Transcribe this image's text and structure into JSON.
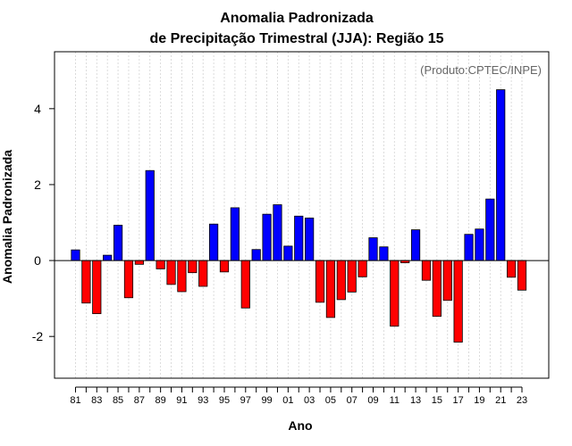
{
  "chart_data": {
    "type": "bar",
    "title": [
      "Anomalia Padronizada",
      "de Precipitação Trimestral (JJA): Região 15"
    ],
    "xlabel": "Ano",
    "ylabel": "Anomalia Padronizada",
    "credit": "(Produto:CPTEC/INPE)",
    "ylim": [
      -3.1,
      5.5
    ],
    "yticks": [
      {
        "value": -2,
        "label": "-2"
      },
      {
        "value": 0,
        "label": "0"
      },
      {
        "value": 2,
        "label": "2"
      },
      {
        "value": 4,
        "label": "4"
      }
    ],
    "years": [
      1981,
      1982,
      1983,
      1984,
      1985,
      1986,
      1987,
      1988,
      1989,
      1990,
      1991,
      1992,
      1993,
      1994,
      1995,
      1996,
      1997,
      1998,
      1999,
      2000,
      2001,
      2002,
      2003,
      2004,
      2005,
      2006,
      2007,
      2008,
      2009,
      2010,
      2011,
      2012,
      2013,
      2014,
      2015,
      2016,
      2017,
      2018,
      2019,
      2020,
      2021,
      2022,
      2023
    ],
    "values": [
      0.28,
      -1.12,
      -1.4,
      0.14,
      0.93,
      -0.98,
      -0.1,
      2.37,
      -0.22,
      -0.63,
      -0.82,
      -0.32,
      -0.68,
      0.96,
      -0.3,
      1.39,
      -1.25,
      0.29,
      1.22,
      1.47,
      0.38,
      1.17,
      1.12,
      -1.1,
      -1.5,
      -1.03,
      -0.83,
      -0.43,
      0.6,
      0.36,
      -1.73,
      -0.06,
      0.81,
      -0.52,
      -1.47,
      -1.05,
      -2.15,
      0.69,
      0.83,
      1.62,
      4.5,
      -0.44,
      -0.78
    ],
    "xticks": [
      {
        "index": 0,
        "label": "81"
      },
      {
        "index": 2,
        "label": "83"
      },
      {
        "index": 4,
        "label": "85"
      },
      {
        "index": 6,
        "label": "87"
      },
      {
        "index": 8,
        "label": "89"
      },
      {
        "index": 10,
        "label": "91"
      },
      {
        "index": 12,
        "label": "93"
      },
      {
        "index": 14,
        "label": "95"
      },
      {
        "index": 16,
        "label": "97"
      },
      {
        "index": 18,
        "label": "99"
      },
      {
        "index": 20,
        "label": "01"
      },
      {
        "index": 22,
        "label": "03"
      },
      {
        "index": 24,
        "label": "05"
      },
      {
        "index": 26,
        "label": "07"
      },
      {
        "index": 28,
        "label": "09"
      },
      {
        "index": 30,
        "label": "11"
      },
      {
        "index": 32,
        "label": "13"
      },
      {
        "index": 34,
        "label": "15"
      },
      {
        "index": 36,
        "label": "17"
      },
      {
        "index": 38,
        "label": "19"
      },
      {
        "index": 40,
        "label": "21"
      },
      {
        "index": 42,
        "label": "23"
      }
    ],
    "colors": {
      "positive": "#0000ff",
      "negative": "#ff0000",
      "grid": "#d3d3d3",
      "zero_line": "#000000"
    },
    "grid": true
  }
}
